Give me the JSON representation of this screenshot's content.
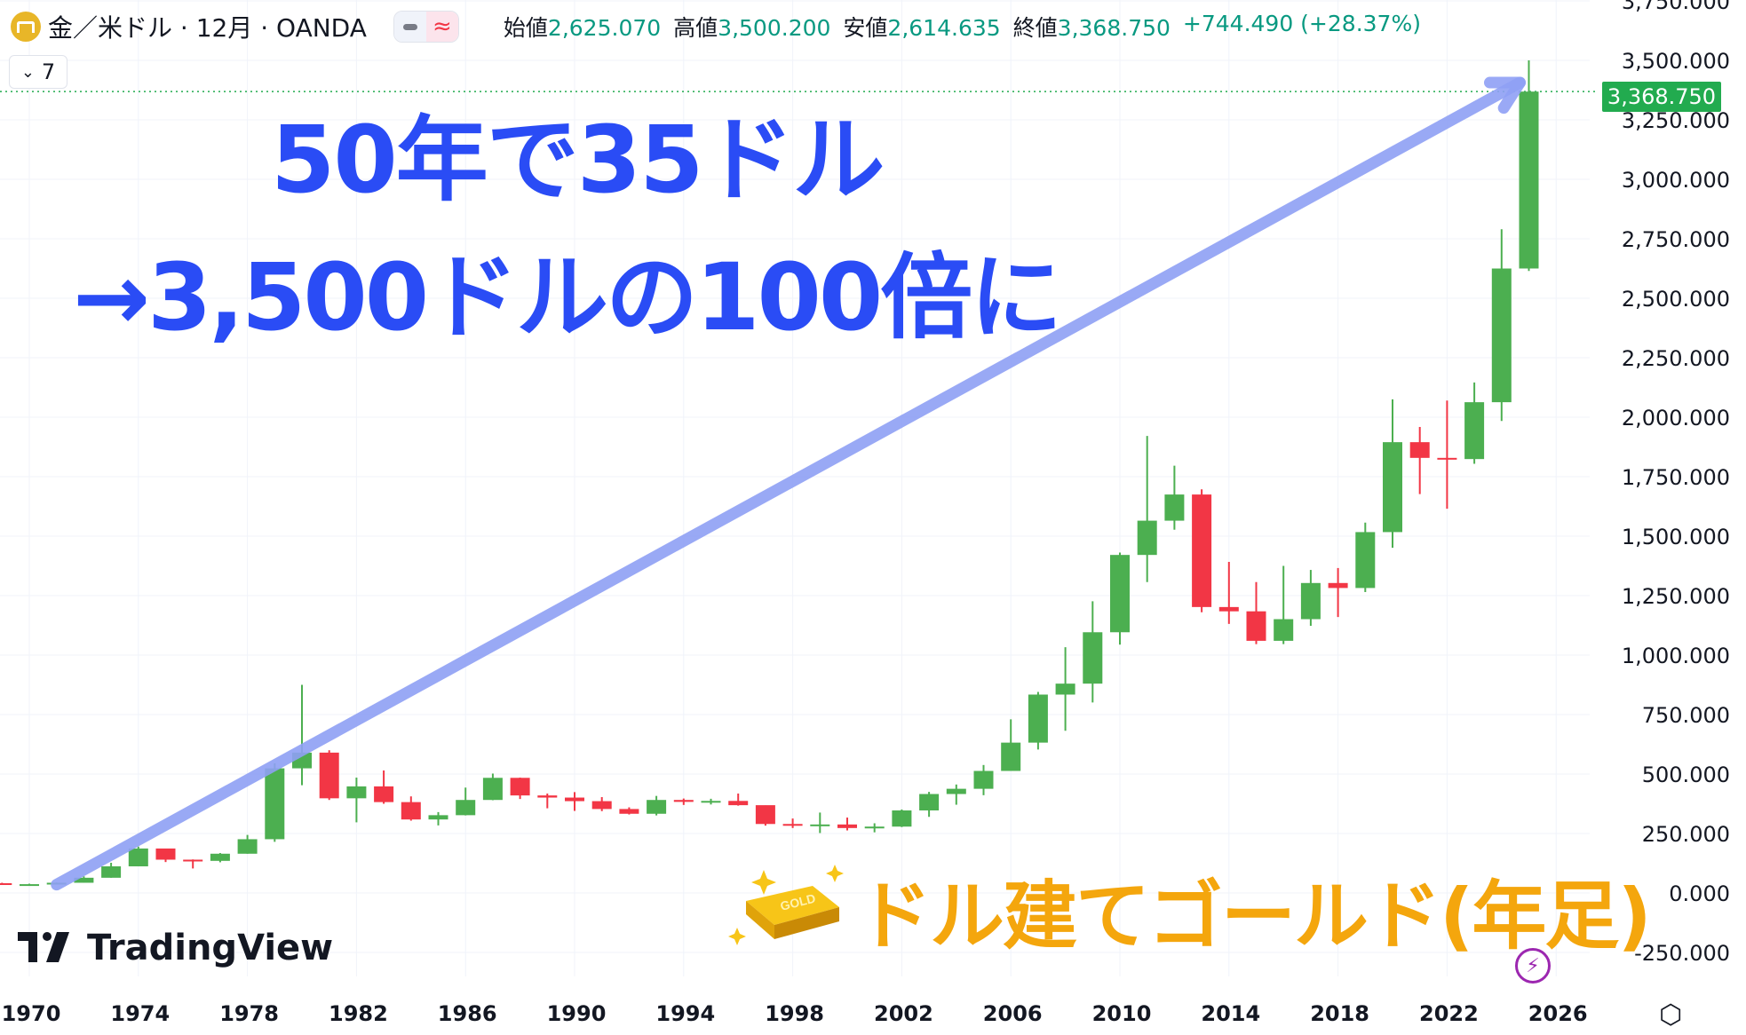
{
  "header": {
    "symbol": "金／米ドル · 12月 · OANDA",
    "approx_symbol": "≈",
    "open_label": "始値",
    "open": "2,625.070",
    "high_label": "高値",
    "high": "3,500.200",
    "low_label": "安値",
    "low": "2,614.635",
    "close_label": "終値",
    "close": "3,368.750",
    "change": "+744.490 (+28.37%)"
  },
  "indicator_toggle": {
    "label": "7"
  },
  "annotations": {
    "headline1": "50年で35ドル",
    "headline2": "→3,500ドルの100倍に",
    "title": "ドル建てゴールド(年足)"
  },
  "logo": {
    "text": "TradingView"
  },
  "current_price_label": "3,368.750",
  "colors": {
    "up": "#4caf50",
    "down": "#f23645",
    "arrow": "#8fa0f5",
    "headline": "#2a4cf5",
    "title": "#f4a60d",
    "price_tag": "#22ab4f"
  },
  "chart_data": {
    "type": "candlestick",
    "interval": "12M",
    "ylim": [
      -250,
      3750
    ],
    "y_ticks": [
      "-250.000",
      "0.000",
      "250.000",
      "500.000",
      "750.000",
      "1,000.000",
      "1,250.000",
      "1,500.000",
      "1,750.000",
      "2,000.000",
      "2,250.000",
      "2,500.000",
      "2,750.000",
      "3,000.000",
      "3,250.000",
      "3,500.000",
      "3,750.000"
    ],
    "y_tick_values": [
      -250,
      0,
      250,
      500,
      750,
      1000,
      1250,
      1500,
      1750,
      2000,
      2250,
      2500,
      2750,
      3000,
      3250,
      3500,
      3750
    ],
    "x_ticks": [
      "1970",
      "1974",
      "1978",
      "1982",
      "1986",
      "1990",
      "1994",
      "1998",
      "2002",
      "2006",
      "2010",
      "2014",
      "2018",
      "2022",
      "2026"
    ],
    "x_tick_values": [
      1970,
      1974,
      1978,
      1982,
      1986,
      1990,
      1994,
      1998,
      2002,
      2006,
      2010,
      2014,
      2018,
      2022,
      2026
    ],
    "xlim": [
      1969,
      2027
    ],
    "candles": [
      {
        "year": 1969,
        "o": 41,
        "h": 43,
        "l": 35,
        "c": 35
      },
      {
        "year": 1970,
        "o": 35,
        "h": 39,
        "l": 35,
        "c": 37
      },
      {
        "year": 1971,
        "o": 37,
        "h": 44,
        "l": 37,
        "c": 43
      },
      {
        "year": 1972,
        "o": 43,
        "h": 70,
        "l": 43,
        "c": 64
      },
      {
        "year": 1973,
        "o": 64,
        "h": 127,
        "l": 64,
        "c": 112
      },
      {
        "year": 1974,
        "o": 112,
        "h": 195,
        "l": 112,
        "c": 187
      },
      {
        "year": 1975,
        "o": 187,
        "h": 186,
        "l": 130,
        "c": 140
      },
      {
        "year": 1976,
        "o": 140,
        "h": 141,
        "l": 103,
        "c": 135
      },
      {
        "year": 1977,
        "o": 135,
        "h": 168,
        "l": 129,
        "c": 165
      },
      {
        "year": 1978,
        "o": 165,
        "h": 244,
        "l": 165,
        "c": 226
      },
      {
        "year": 1979,
        "o": 226,
        "h": 545,
        "l": 215,
        "c": 524
      },
      {
        "year": 1980,
        "o": 524,
        "h": 875,
        "l": 453,
        "c": 590
      },
      {
        "year": 1981,
        "o": 590,
        "h": 600,
        "l": 391,
        "c": 398
      },
      {
        "year": 1982,
        "o": 398,
        "h": 485,
        "l": 297,
        "c": 448
      },
      {
        "year": 1983,
        "o": 448,
        "h": 515,
        "l": 375,
        "c": 382
      },
      {
        "year": 1984,
        "o": 382,
        "h": 406,
        "l": 304,
        "c": 309
      },
      {
        "year": 1985,
        "o": 309,
        "h": 340,
        "l": 284,
        "c": 327
      },
      {
        "year": 1986,
        "o": 327,
        "h": 443,
        "l": 326,
        "c": 391
      },
      {
        "year": 1987,
        "o": 391,
        "h": 502,
        "l": 390,
        "c": 484
      },
      {
        "year": 1988,
        "o": 484,
        "h": 485,
        "l": 395,
        "c": 410
      },
      {
        "year": 1989,
        "o": 410,
        "h": 418,
        "l": 356,
        "c": 401
      },
      {
        "year": 1990,
        "o": 401,
        "h": 424,
        "l": 345,
        "c": 386
      },
      {
        "year": 1991,
        "o": 386,
        "h": 403,
        "l": 344,
        "c": 353
      },
      {
        "year": 1992,
        "o": 353,
        "h": 360,
        "l": 330,
        "c": 333
      },
      {
        "year": 1993,
        "o": 333,
        "h": 408,
        "l": 326,
        "c": 391
      },
      {
        "year": 1994,
        "o": 391,
        "h": 397,
        "l": 370,
        "c": 383
      },
      {
        "year": 1995,
        "o": 383,
        "h": 396,
        "l": 372,
        "c": 387
      },
      {
        "year": 1996,
        "o": 387,
        "h": 418,
        "l": 367,
        "c": 369
      },
      {
        "year": 1997,
        "o": 369,
        "h": 368,
        "l": 283,
        "c": 290
      },
      {
        "year": 1998,
        "o": 290,
        "h": 313,
        "l": 273,
        "c": 288
      },
      {
        "year": 1999,
        "o": 288,
        "h": 338,
        "l": 252,
        "c": 288
      },
      {
        "year": 2000,
        "o": 288,
        "h": 317,
        "l": 263,
        "c": 273
      },
      {
        "year": 2001,
        "o": 273,
        "h": 293,
        "l": 255,
        "c": 279
      },
      {
        "year": 2002,
        "o": 279,
        "h": 351,
        "l": 277,
        "c": 347
      },
      {
        "year": 2003,
        "o": 347,
        "h": 425,
        "l": 320,
        "c": 416
      },
      {
        "year": 2004,
        "o": 416,
        "h": 456,
        "l": 371,
        "c": 438
      },
      {
        "year": 2005,
        "o": 438,
        "h": 538,
        "l": 411,
        "c": 513
      },
      {
        "year": 2006,
        "o": 513,
        "h": 730,
        "l": 513,
        "c": 632
      },
      {
        "year": 2007,
        "o": 632,
        "h": 845,
        "l": 603,
        "c": 834
      },
      {
        "year": 2008,
        "o": 834,
        "h": 1033,
        "l": 682,
        "c": 880
      },
      {
        "year": 2009,
        "o": 880,
        "h": 1226,
        "l": 801,
        "c": 1096
      },
      {
        "year": 2010,
        "o": 1096,
        "h": 1431,
        "l": 1044,
        "c": 1421
      },
      {
        "year": 2011,
        "o": 1421,
        "h": 1921,
        "l": 1307,
        "c": 1565
      },
      {
        "year": 2012,
        "o": 1565,
        "h": 1796,
        "l": 1527,
        "c": 1675
      },
      {
        "year": 2013,
        "o": 1675,
        "h": 1697,
        "l": 1180,
        "c": 1202
      },
      {
        "year": 2014,
        "o": 1202,
        "h": 1392,
        "l": 1131,
        "c": 1184
      },
      {
        "year": 2015,
        "o": 1184,
        "h": 1307,
        "l": 1046,
        "c": 1060
      },
      {
        "year": 2016,
        "o": 1060,
        "h": 1375,
        "l": 1046,
        "c": 1151
      },
      {
        "year": 2017,
        "o": 1151,
        "h": 1358,
        "l": 1123,
        "c": 1303
      },
      {
        "year": 2018,
        "o": 1303,
        "h": 1366,
        "l": 1160,
        "c": 1282
      },
      {
        "year": 2019,
        "o": 1282,
        "h": 1557,
        "l": 1265,
        "c": 1517
      },
      {
        "year": 2020,
        "o": 1517,
        "h": 2075,
        "l": 1451,
        "c": 1895
      },
      {
        "year": 2021,
        "o": 1895,
        "h": 1959,
        "l": 1677,
        "c": 1829
      },
      {
        "year": 2022,
        "o": 1829,
        "h": 2070,
        "l": 1615,
        "c": 1824
      },
      {
        "year": 2023,
        "o": 1824,
        "h": 2146,
        "l": 1804,
        "c": 2063
      },
      {
        "year": 2024,
        "o": 2063,
        "h": 2790,
        "l": 1984,
        "c": 2625
      },
      {
        "year": 2025,
        "o": 2625.07,
        "h": 3500.2,
        "l": 2614.635,
        "c": 3368.75
      }
    ],
    "trend_arrow": {
      "from": {
        "year": 1971,
        "value": 35
      },
      "to": {
        "year": 2025,
        "value": 3500
      }
    }
  }
}
